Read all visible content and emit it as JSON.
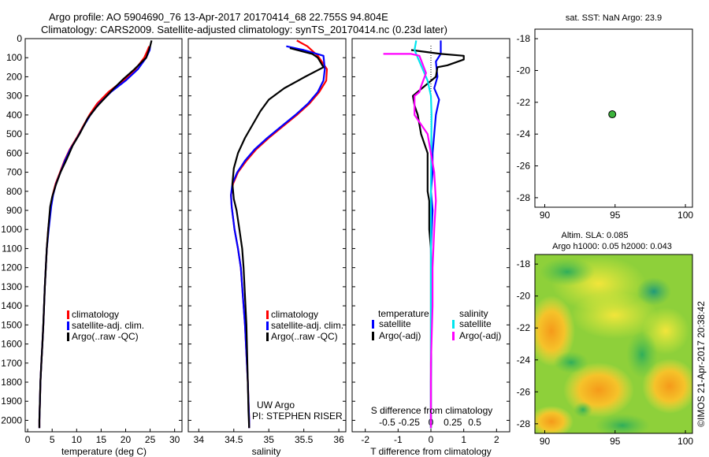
{
  "header": {
    "title": "Argo profile: AO 5904690_76 13-Apr-2017 20170414_68 22.755S 94.804E",
    "subtitle": "Climatology: CARS2009. Satellite-adjusted climatology: synTS_20170414.nc (0.23d later)"
  },
  "side_label": "©IMOS 21-Apr-2017 20:38:42",
  "colors": {
    "climatology": "#ff0000",
    "satellite": "#0000ff",
    "argo": "#000000",
    "salinity_satellite": "#00e5ee",
    "salinity_argo": "#ff00ff"
  },
  "legend_main": {
    "items": [
      "climatology",
      "satellite-adj. clim.",
      "Argo(..raw -QC)"
    ]
  },
  "legend_diff": {
    "temp_head": "temperature",
    "sal_head": "salinity",
    "items": [
      "satellite",
      "Argo(-adj)",
      "satellite",
      "Argo(-adj)"
    ]
  },
  "credit": {
    "line1": "UW Argo",
    "line2": "PI: STEPHEN RISER"
  },
  "map_sst": {
    "title": "sat. SST: NaN Argo: 23.9"
  },
  "map_sla": {
    "title1": "Altim. SLA: 0.085",
    "title2": "Argo h1000: 0.05 h2000: 0.043"
  },
  "chart_data": [
    {
      "type": "line",
      "xlabel": "temperature (deg C)",
      "ylabel": "",
      "xlim": [
        -0.5,
        31.5
      ],
      "ylim": [
        0,
        2060
      ],
      "y_inverted": true,
      "x_ticks": [
        0,
        5,
        10,
        15,
        20,
        25,
        30
      ],
      "y_ticks": [
        0,
        100,
        200,
        300,
        400,
        500,
        600,
        700,
        800,
        900,
        1000,
        1100,
        1200,
        1300,
        1400,
        1500,
        1600,
        1700,
        1800,
        1900,
        2000
      ],
      "series": [
        {
          "name": "climatology",
          "x": [
            24.8,
            24.5,
            23.8,
            22,
            19.5,
            16.5,
            14.2,
            12.6,
            11.3,
            10,
            8.6,
            7.5,
            6.6,
            5.7,
            5.1,
            4.7,
            4.2,
            3.9,
            3.5,
            3.2,
            3.0,
            2.8,
            2.6,
            2.5,
            2.4,
            2.4
          ],
          "y": [
            40,
            60,
            100,
            160,
            220,
            280,
            340,
            400,
            460,
            520,
            580,
            640,
            700,
            760,
            820,
            880,
            1000,
            1100,
            1300,
            1500,
            1600,
            1700,
            1800,
            1900,
            2000,
            2040
          ]
        },
        {
          "name": "satellite-adj. clim.",
          "x": [
            25.0,
            24.9,
            24.2,
            22.5,
            20,
            17,
            14.6,
            12.8,
            11.4,
            10.1,
            8.7,
            7.6,
            6.7,
            5.8,
            5.2,
            4.8,
            4.3,
            3.9,
            3.5,
            3.2,
            3.0,
            2.8,
            2.6,
            2.5,
            2.4,
            2.4
          ],
          "y": [
            40,
            60,
            100,
            160,
            220,
            280,
            340,
            400,
            460,
            520,
            580,
            640,
            700,
            760,
            820,
            880,
            1000,
            1100,
            1300,
            1500,
            1600,
            1700,
            1800,
            1900,
            2000,
            2040
          ]
        },
        {
          "name": "Argo(..raw -QC)",
          "x": [
            25.3,
            25.0,
            24.2,
            21.8,
            19.6,
            17.6,
            15.8,
            14,
            12.2,
            10.6,
            9.2,
            8.0,
            6.7,
            5.7,
            5.0,
            4.6,
            4.2,
            3.9,
            3.5,
            3.2,
            3.0,
            2.8,
            2.6,
            2.5,
            2.4,
            2.4
          ],
          "y": [
            10,
            40,
            100,
            160,
            210,
            260,
            310,
            360,
            420,
            500,
            560,
            630,
            700,
            770,
            830,
            880,
            1000,
            1100,
            1300,
            1500,
            1600,
            1700,
            1800,
            1900,
            2000,
            2040
          ]
        }
      ]
    },
    {
      "type": "line",
      "xlabel": "salinity",
      "ylabel": "",
      "xlim": [
        33.85,
        36.1
      ],
      "ylim": [
        0,
        2060
      ],
      "y_inverted": true,
      "x_ticks": [
        34,
        34.5,
        35,
        35.5,
        36
      ],
      "series": [
        {
          "name": "climatology",
          "x": [
            35.4,
            35.55,
            35.7,
            35.83,
            35.82,
            35.72,
            35.58,
            35.4,
            35.2,
            35,
            34.82,
            34.68,
            34.56,
            34.49,
            34.46,
            34.47,
            34.51,
            34.56,
            34.6,
            34.63,
            34.66,
            34.68,
            34.7,
            34.71,
            34.72,
            34.72
          ],
          "y": [
            10,
            40,
            90,
            160,
            220,
            280,
            340,
            400,
            460,
            520,
            580,
            640,
            700,
            760,
            820,
            880,
            1000,
            1100,
            1200,
            1350,
            1500,
            1650,
            1800,
            1900,
            2000,
            2040
          ]
        },
        {
          "name": "satellite-adj. clim.",
          "x": [
            35.25,
            35.5,
            35.78,
            35.8,
            35.78,
            35.7,
            35.56,
            35.38,
            35.18,
            34.98,
            34.8,
            34.66,
            34.55,
            34.48,
            34.46,
            34.47,
            34.51,
            34.56,
            34.6,
            34.63,
            34.66,
            34.68,
            34.7,
            34.71,
            34.72,
            34.72
          ],
          "y": [
            40,
            60,
            90,
            160,
            220,
            280,
            340,
            400,
            460,
            520,
            580,
            640,
            700,
            760,
            820,
            880,
            1000,
            1100,
            1200,
            1350,
            1500,
            1650,
            1800,
            1900,
            2000,
            2040
          ]
        },
        {
          "name": "Argo(..raw -QC)",
          "x": [
            35.3,
            35.62,
            35.7,
            35.78,
            35.52,
            35.22,
            35.0,
            34.88,
            34.77,
            34.66,
            34.56,
            34.5,
            34.48,
            34.5,
            34.54,
            34.58,
            34.62,
            34.64,
            34.66,
            34.68,
            34.69,
            34.7,
            34.71,
            34.72
          ],
          "y": [
            50,
            80,
            100,
            150,
            200,
            260,
            320,
            380,
            450,
            520,
            600,
            680,
            760,
            840,
            900,
            1000,
            1100,
            1200,
            1350,
            1500,
            1650,
            1800,
            1950,
            2040
          ]
        }
      ]
    },
    {
      "type": "line",
      "xlabel": "T difference from climatology",
      "top_label": "S difference from climatology",
      "xlim": [
        -2.4,
        2.4
      ],
      "ylim": [
        0,
        2060
      ],
      "y_inverted": true,
      "x_ticks_T": [
        -2,
        -1,
        0,
        1,
        2
      ],
      "x_ticks_S": [
        -0.5,
        -0.25,
        0,
        0.25,
        0.5
      ],
      "x_tick_labels_S": [
        "-0.5",
        "-0.25",
        "0",
        "0.25",
        "0.5"
      ],
      "series": [
        {
          "name": "temperature satellite",
          "x": [
            0.3,
            0.3,
            0.15,
            0.2,
            0.1,
            0.25,
            0.15,
            0.1,
            0.05,
            0.05,
            0,
            0.05,
            0,
            0.02,
            0,
            0
          ],
          "y": [
            10,
            80,
            120,
            200,
            260,
            320,
            400,
            500,
            600,
            700,
            800,
            900,
            1100,
            1400,
            1800,
            2040
          ]
        },
        {
          "name": "temperature Argo(-adj)",
          "x": [
            -0.6,
            0.3,
            1.0,
            1.0,
            0.5,
            0.2,
            0.15,
            -0.55,
            -0.5,
            -0.4,
            -0.3,
            -0.1,
            -0.1,
            -0.1,
            -0.05,
            -0.05,
            -0.05,
            0,
            0,
            0,
            0
          ],
          "y": [
            60,
            80,
            90,
            110,
            140,
            150,
            200,
            300,
            350,
            400,
            500,
            600,
            700,
            800,
            850,
            900,
            1000,
            1100,
            1400,
            1800,
            2040
          ]
        },
        {
          "name": "salinity satellite",
          "x": [
            -0.45,
            -0.5,
            -0.35,
            -0.25,
            -0.1,
            0,
            0.02,
            0.01,
            0,
            0,
            0,
            0
          ],
          "y": [
            10,
            60,
            120,
            160,
            220,
            300,
            400,
            600,
            800,
            1200,
            1600,
            2040
          ]
        },
        {
          "name": "salinity Argo(-adj)",
          "x": [
            -1.45,
            -0.6,
            -0.35,
            -0.15,
            -0.3,
            -0.35,
            -0.5,
            -0.5,
            -0.3,
            -0.1,
            0,
            0.1,
            0.15,
            0.1,
            0.05,
            0.05,
            0,
            0
          ],
          "y": [
            80,
            80,
            90,
            180,
            250,
            280,
            300,
            400,
            450,
            500,
            600,
            700,
            850,
            1000,
            1200,
            1400,
            1700,
            2040
          ]
        }
      ]
    },
    {
      "type": "scatter",
      "title": "sat. SST: NaN Argo: 23.9",
      "xlim": [
        89.3,
        100.5
      ],
      "ylim": [
        -28.6,
        -17.4
      ],
      "x_ticks": [
        90,
        95,
        100
      ],
      "y_ticks": [
        -18,
        -20,
        -22,
        -24,
        -26,
        -28
      ],
      "points": [
        {
          "x": 94.8,
          "y": -22.755
        }
      ]
    },
    {
      "type": "heatmap",
      "title": "Altim. SLA: 0.085  Argo h1000: 0.05 h2000: 0.043",
      "xlim": [
        89.3,
        100.5
      ],
      "ylim": [
        -28.6,
        -17.4
      ],
      "x_ticks": [
        90,
        95,
        100
      ],
      "y_ticks": [
        -18,
        -20,
        -22,
        -24,
        -26,
        -28
      ],
      "points": [
        {
          "x": 94.8,
          "y": -22.755
        }
      ]
    }
  ]
}
